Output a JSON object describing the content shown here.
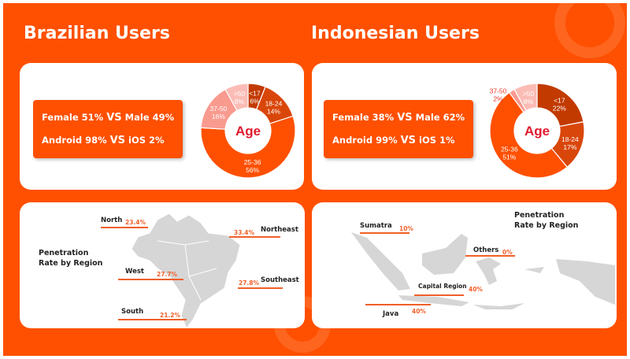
{
  "brazil": {
    "title": "Brazilian Users",
    "gender": {
      "a": "Female 51%",
      "vs": "VS",
      "b": "Male 49%"
    },
    "os": {
      "a": "Android 98%",
      "vs": "VS",
      "b": "iOS 2%"
    },
    "age_label": "Age",
    "age": [
      {
        "label": "<17",
        "pct": "6%",
        "value": 6,
        "color": "#c23a00"
      },
      {
        "label": "18-24",
        "pct": "14%",
        "value": 14,
        "color": "#d9460a"
      },
      {
        "label": "25-36",
        "pct": "56%",
        "value": 56,
        "color": "#fe5000"
      },
      {
        "label": "37-50",
        "pct": "16%",
        "value": 16,
        "color": "#f99a8f"
      },
      {
        "label": ">50",
        "pct": "8%",
        "value": 8,
        "color": "#fbbcb5"
      }
    ],
    "penetration_title": [
      "Penetration",
      "Rate by Region"
    ],
    "regions": [
      {
        "name": "North",
        "value": "23.4%"
      },
      {
        "name": "Northeast",
        "value": "33.4%"
      },
      {
        "name": "West",
        "value": "27.7%"
      },
      {
        "name": "Southeast",
        "value": "27.8%"
      },
      {
        "name": "South",
        "value": "21.2%"
      }
    ]
  },
  "indonesia": {
    "title": "Indonesian Users",
    "gender": {
      "a": "Female 38%",
      "vs": "VS",
      "b": "Male 62%"
    },
    "os": {
      "a": "Android 99%",
      "vs": "VS",
      "b": "iOS 1%"
    },
    "age_label": "Age",
    "age": [
      {
        "label": "<17",
        "pct": "22%",
        "value": 22,
        "color": "#c23a00"
      },
      {
        "label": "18-24",
        "pct": "17%",
        "value": 17,
        "color": "#d9460a"
      },
      {
        "label": "25-36",
        "pct": "51%",
        "value": 51,
        "color": "#fe5000"
      },
      {
        "label": "37-50",
        "pct": "2%",
        "value": 2,
        "color": "#f99a8f"
      },
      {
        "label": ">50",
        "pct": "8%",
        "value": 8,
        "color": "#fbbcb5"
      }
    ],
    "penetration_title": [
      "Penetration",
      "Rate by Region"
    ],
    "regions": [
      {
        "name": "Sumatra",
        "value": "10%"
      },
      {
        "name": "Others",
        "value": "0%"
      },
      {
        "name": "Capital Region",
        "value": "40%"
      },
      {
        "name": "Java",
        "value": "40%"
      }
    ]
  }
}
